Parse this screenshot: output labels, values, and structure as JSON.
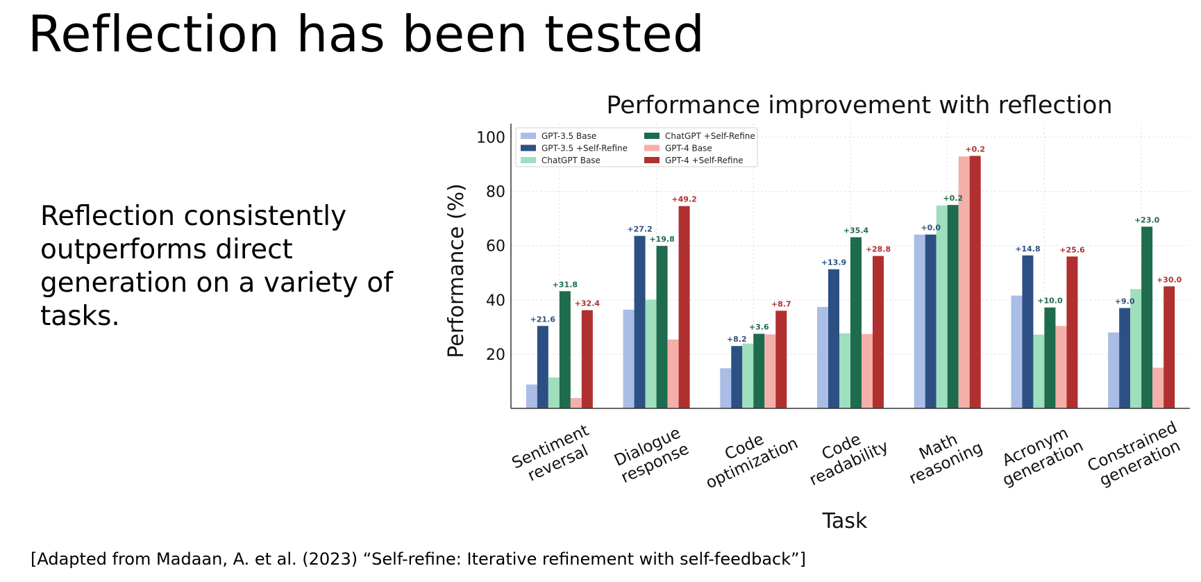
{
  "slide": {
    "title": "Reflection has been tested",
    "body": "Reflection consistently outperforms direct generation on a variety of tasks.",
    "citation": "[Adapted from Madaan, A. et al. (2023) “Self-refine: Iterative refinement with self-feedback”]"
  },
  "chart_data": {
    "type": "bar",
    "title": "Performance improvement with reflection",
    "xlabel": "Task",
    "ylabel": "Performance (%)",
    "ylim": [
      0,
      105
    ],
    "yticks": [
      20,
      40,
      60,
      80,
      100
    ],
    "grid": true,
    "legend_position": "top-left",
    "categories": [
      [
        "Sentiment",
        "reversal"
      ],
      [
        "Dialogue",
        "response"
      ],
      [
        "Code",
        "optimization"
      ],
      [
        "Code",
        "readability"
      ],
      [
        "Math",
        "reasoning"
      ],
      [
        "Acronym",
        "generation"
      ],
      [
        "Constrained",
        "generation"
      ]
    ],
    "series": [
      {
        "name": "GPT-3.5 Base",
        "color": "#a9bde6",
        "values": [
          8.8,
          36.4,
          14.8,
          37.4,
          64.1,
          41.6,
          28.0
        ]
      },
      {
        "name": "GPT-3.5 +Self-Refine",
        "color": "#2d5084",
        "values": [
          30.4,
          63.6,
          23.0,
          51.3,
          64.1,
          56.4,
          37.0
        ],
        "labels": [
          "+21.6",
          "+27.2",
          "+8.2",
          "+13.9",
          "+0.0",
          "+14.8",
          "+9.0"
        ],
        "label_color": "#2d5084"
      },
      {
        "name": "ChatGPT Base",
        "color": "#9fdfbe",
        "values": [
          11.4,
          40.1,
          23.9,
          27.7,
          74.8,
          27.2,
          44.0
        ]
      },
      {
        "name": "ChatGPT +Self-Refine",
        "color": "#1e6b4e",
        "values": [
          43.2,
          59.9,
          27.5,
          63.1,
          75.0,
          37.2,
          67.0
        ],
        "labels": [
          "+31.8",
          "+19.8",
          "+3.6",
          "+35.4",
          "+0.2",
          "+10.0",
          "+23.0"
        ],
        "label_color": "#1e6b4e"
      },
      {
        "name": "GPT-4 Base",
        "color": "#f4b0a8",
        "values": [
          3.8,
          25.4,
          27.3,
          27.4,
          92.9,
          30.4,
          15.0
        ]
      },
      {
        "name": "GPT-4 +Self-Refine",
        "color": "#b03030",
        "values": [
          36.2,
          74.6,
          36.0,
          56.2,
          93.1,
          56.0,
          45.0
        ],
        "labels": [
          "+32.4",
          "+49.2",
          "+8.7",
          "+28.8",
          "+0.2",
          "+25.6",
          "+30.0"
        ],
        "label_color": "#b03030"
      }
    ]
  }
}
